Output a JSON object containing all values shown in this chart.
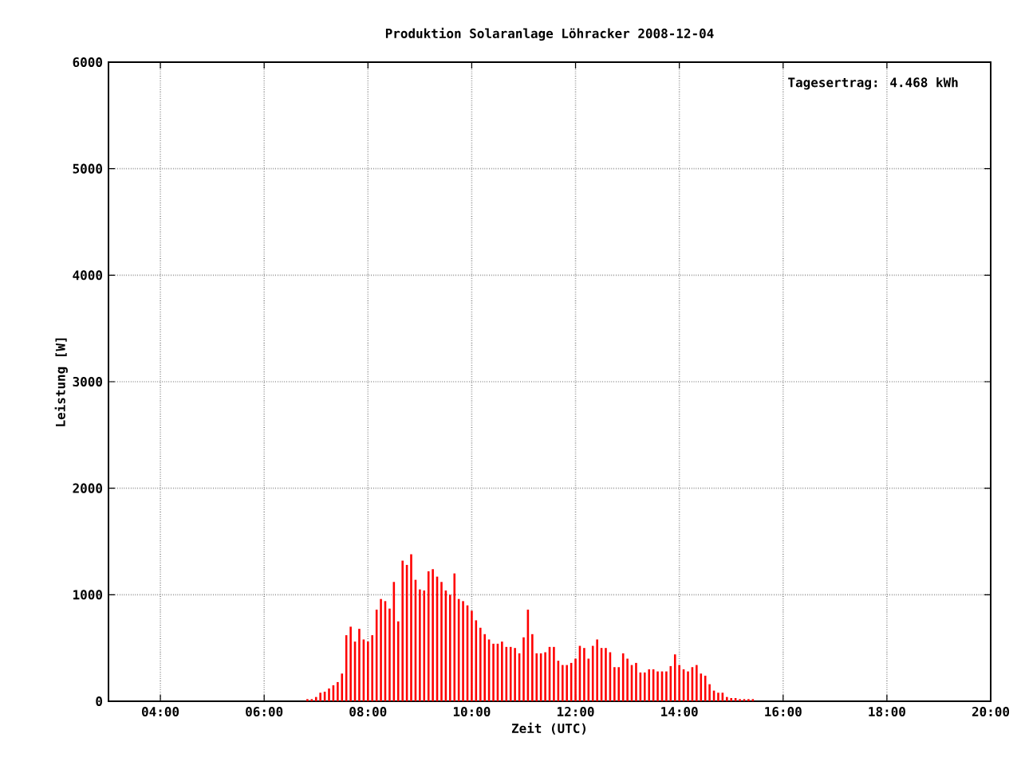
{
  "chart_data": {
    "type": "bar",
    "title": "Produktion Solaranlage Löhracker 2008-12-04",
    "xlabel": "Zeit (UTC)",
    "ylabel": "Leistung [W]",
    "annotations": [
      "Tagesertrag: 4.468 kWh"
    ],
    "x": [
      6.833,
      6.917,
      7,
      7.083,
      7.167,
      7.25,
      7.333,
      7.417,
      7.5,
      7.583,
      7.667,
      7.75,
      7.833,
      7.917,
      8,
      8.083,
      8.167,
      8.25,
      8.333,
      8.417,
      8.5,
      8.583,
      8.667,
      8.75,
      8.833,
      8.917,
      9,
      9.083,
      9.167,
      9.25,
      9.333,
      9.417,
      9.5,
      9.583,
      9.667,
      9.75,
      9.833,
      9.917,
      10,
      10.083,
      10.167,
      10.25,
      10.333,
      10.417,
      10.5,
      10.583,
      10.667,
      10.75,
      10.833,
      10.917,
      11,
      11.083,
      11.167,
      11.25,
      11.333,
      11.417,
      11.5,
      11.583,
      11.667,
      11.75,
      11.833,
      11.917,
      12,
      12.083,
      12.167,
      12.25,
      12.333,
      12.417,
      12.5,
      12.583,
      12.667,
      12.75,
      12.833,
      12.917,
      13,
      13.083,
      13.167,
      13.25,
      13.333,
      13.417,
      13.5,
      13.583,
      13.667,
      13.75,
      13.833,
      13.917,
      14,
      14.083,
      14.167,
      14.25,
      14.333,
      14.417,
      14.5,
      14.583,
      14.667,
      14.75,
      14.833,
      14.917,
      15,
      15.083,
      15.167,
      15.25,
      15.333,
      15.417
    ],
    "series": [
      {
        "color": "#ff0000",
        "values": [
          20,
          20,
          40,
          80,
          90,
          120,
          150,
          180,
          260,
          620,
          700,
          560,
          680,
          580,
          560,
          620,
          860,
          960,
          940,
          870,
          1120,
          750,
          1320,
          1280,
          1380,
          1140,
          1050,
          1040,
          1220,
          1240,
          1170,
          1120,
          1040,
          1000,
          1200,
          960,
          940,
          900,
          850,
          760,
          690,
          630,
          580,
          540,
          540,
          560,
          510,
          510,
          500,
          450,
          600,
          860,
          630,
          450,
          450,
          460,
          510,
          510,
          380,
          340,
          340,
          360,
          400,
          520,
          500,
          400,
          520,
          580,
          500,
          500,
          460,
          320,
          320,
          450,
          400,
          340,
          360,
          270,
          270,
          300,
          300,
          280,
          280,
          280,
          330,
          440,
          340,
          300,
          280,
          320,
          340,
          260,
          240,
          160,
          100,
          80,
          80,
          40,
          30,
          30,
          20,
          20,
          20,
          20
        ]
      }
    ],
    "xlim": [
      3,
      20
    ],
    "ylim": [
      0,
      6000
    ],
    "xticks": [
      {
        "value": 4,
        "label": "04:00"
      },
      {
        "value": 6,
        "label": "06:00"
      },
      {
        "value": 8,
        "label": "08:00"
      },
      {
        "value": 10,
        "label": "10:00"
      },
      {
        "value": 12,
        "label": "12:00"
      },
      {
        "value": 14,
        "label": "14:00"
      },
      {
        "value": 16,
        "label": "16:00"
      },
      {
        "value": 18,
        "label": "18:00"
      },
      {
        "value": 20,
        "label": "20:00"
      }
    ],
    "yticks": [
      0,
      1000,
      2000,
      3000,
      4000,
      5000,
      6000
    ],
    "grid": true
  }
}
